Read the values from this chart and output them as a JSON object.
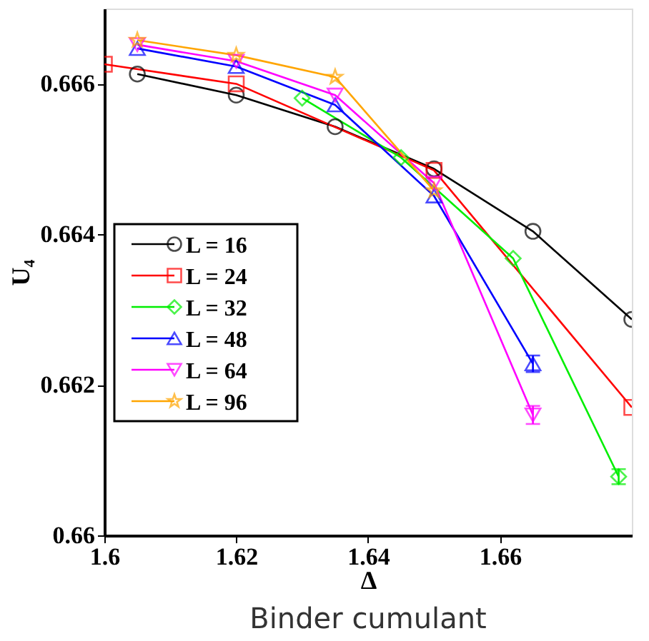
{
  "chart_data": {
    "type": "line",
    "title": "Binder cumulant",
    "xlabel": "Δ",
    "ylabel": "U₄",
    "xlim": [
      1.6,
      1.68
    ],
    "ylim": [
      0.66,
      0.667
    ],
    "xticks": [
      1.6,
      1.62,
      1.64,
      1.66
    ],
    "yticks": [
      0.66,
      0.662,
      0.664,
      0.666
    ],
    "legend": "bottom left",
    "grid": false,
    "series": [
      {
        "name": "L = 16",
        "color": "#000000",
        "marker": "circle",
        "x": [
          1.605,
          1.62,
          1.635,
          1.65,
          1.665,
          1.68
        ],
        "values": [
          0.66613,
          0.66585,
          0.66543,
          0.66487,
          0.66404,
          0.66287
        ]
      },
      {
        "name": "L = 24",
        "color": "#ff0000",
        "marker": "square",
        "x": [
          1.6,
          1.62,
          1.65,
          1.68
        ],
        "values": [
          0.66626,
          0.666,
          0.66485,
          0.6617
        ]
      },
      {
        "name": "L = 32",
        "color": "#00ee00",
        "marker": "diamond",
        "x": [
          1.63,
          1.645,
          1.662,
          1.678
        ],
        "values": [
          0.66581,
          0.66502,
          0.66368,
          0.66078
        ],
        "errors": [
          null,
          null,
          null,
          0.0001
        ]
      },
      {
        "name": "L = 48",
        "color": "#0000ff",
        "marker": "triangle",
        "x": [
          1.605,
          1.62,
          1.635,
          1.65,
          1.665
        ],
        "values": [
          0.66647,
          0.66623,
          0.66572,
          0.66451,
          0.66228
        ],
        "errors": [
          null,
          null,
          null,
          null,
          0.00011
        ]
      },
      {
        "name": "L = 64",
        "color": "#ff00ff",
        "marker": "triangle-down",
        "x": [
          1.605,
          1.62,
          1.635,
          1.65,
          1.665
        ],
        "values": [
          0.66652,
          0.6663,
          0.66585,
          0.66468,
          0.6616
        ],
        "errors": [
          null,
          null,
          null,
          null,
          0.00012
        ]
      },
      {
        "name": "L = 96",
        "color": "#ffa500",
        "marker": "star",
        "x": [
          1.605,
          1.62,
          1.635,
          1.65
        ],
        "values": [
          0.66658,
          0.66638,
          0.66609,
          0.66458
        ]
      }
    ]
  }
}
